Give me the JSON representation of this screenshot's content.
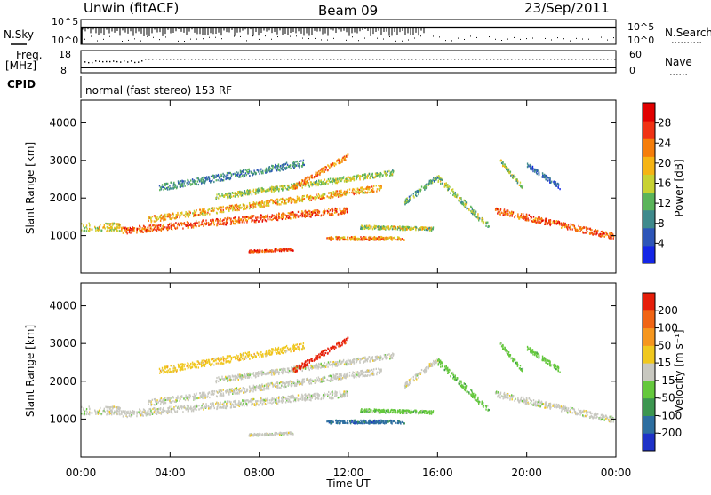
{
  "header": {
    "station": "Unwin (fitACF)",
    "beam": "Beam 09",
    "date": "23/Sep/2011"
  },
  "status_panels": {
    "nsky_label": "N.Sky",
    "nsky_ticks": [
      "10^5",
      "10^0"
    ],
    "nsearch_label": "N.Search",
    "nsearch_ticks": [
      "10^5",
      "10^0"
    ],
    "freq_label": "Freq.",
    "freq_unit": "[MHz]",
    "freq_ticks": [
      "18",
      "8"
    ],
    "nave_label": "Nave",
    "nave_ticks": [
      "60",
      "0"
    ],
    "cpid_label": "CPID",
    "cpid_text": "normal (fast stereo) 153 RF"
  },
  "chart_data": [
    {
      "type": "heatmap",
      "name": "power",
      "ylabel": "Slant Range [km]",
      "xlabel": "",
      "xlim": [
        0,
        24
      ],
      "ylim": [
        0,
        4600
      ],
      "yticks": [
        "1000",
        "2000",
        "3000",
        "4000"
      ],
      "colorbar_label": "Power [dB]",
      "colorbar_ticks": [
        "4",
        "8",
        "12",
        "16",
        "20",
        "24",
        "28"
      ],
      "colorbar_range": [
        0,
        32
      ],
      "colors": [
        "#1426e6",
        "#2d55b8",
        "#3f8a8c",
        "#5ab45a",
        "#c8d232",
        "#f5b414",
        "#f57d0a",
        "#f03214",
        "#e10000"
      ]
    },
    {
      "type": "heatmap",
      "name": "velocity",
      "ylabel": "Slant Range [km]",
      "xlabel": "Time UT",
      "xlim": [
        0,
        24
      ],
      "ylim": [
        0,
        4600
      ],
      "yticks": [
        "1000",
        "2000",
        "3000",
        "4000"
      ],
      "xticks": [
        "00:00",
        "04:00",
        "08:00",
        "12:00",
        "16:00",
        "20:00",
        "00:00"
      ],
      "colorbar_label": "Velocity [m s⁻¹]",
      "colorbar_ticks": [
        "200",
        "100",
        "50",
        "15",
        "-15",
        "-50",
        "-100",
        "-200"
      ],
      "colors": [
        "#1e32c8",
        "#2d6ea0",
        "#3c9650",
        "#64c83c",
        "#c8c8c0",
        "#f0c81e",
        "#f5961e",
        "#f06414",
        "#e61e0a"
      ]
    }
  ]
}
